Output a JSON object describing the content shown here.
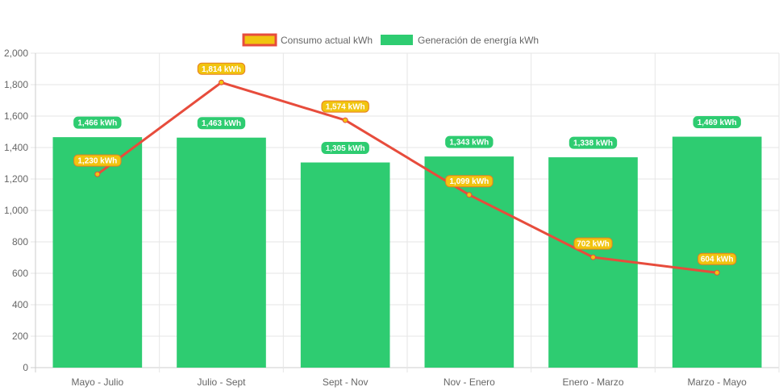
{
  "chart_data": {
    "type": "bar",
    "categories": [
      "Mayo - Julio",
      "Julio - Sept",
      "Sept - Nov",
      "Nov - Enero",
      "Enero - Marzo",
      "Marzo - Mayo"
    ],
    "series": [
      {
        "name": "Consumo actual kWh",
        "type": "line",
        "color": "#e74c3c",
        "label_fill": "#f1c40f",
        "values": [
          1230,
          1814,
          1574,
          1099,
          702,
          604
        ],
        "labels": [
          "1,230 kWh",
          "1,814 kWh",
          "1,574 kWh",
          "1,099 kWh",
          "702 kWh",
          "604 kWh"
        ]
      },
      {
        "name": "Generación de energía kWh",
        "type": "bar",
        "color": "#2ecc71",
        "values": [
          1466,
          1463,
          1305,
          1343,
          1338,
          1469
        ],
        "labels": [
          "1,466 kWh",
          "1,463 kWh",
          "1,305 kWh",
          "1,343 kWh",
          "1,338 kWh",
          "1,469 kWh"
        ]
      }
    ],
    "ylim": [
      0,
      2000
    ],
    "yticks": [
      "0",
      "200",
      "400",
      "600",
      "800",
      "1,000",
      "1,200",
      "1,400",
      "1,600",
      "1,800",
      "2,000"
    ],
    "grid": true,
    "legend": "top-center",
    "title": "",
    "xlabel": "",
    "ylabel": ""
  }
}
